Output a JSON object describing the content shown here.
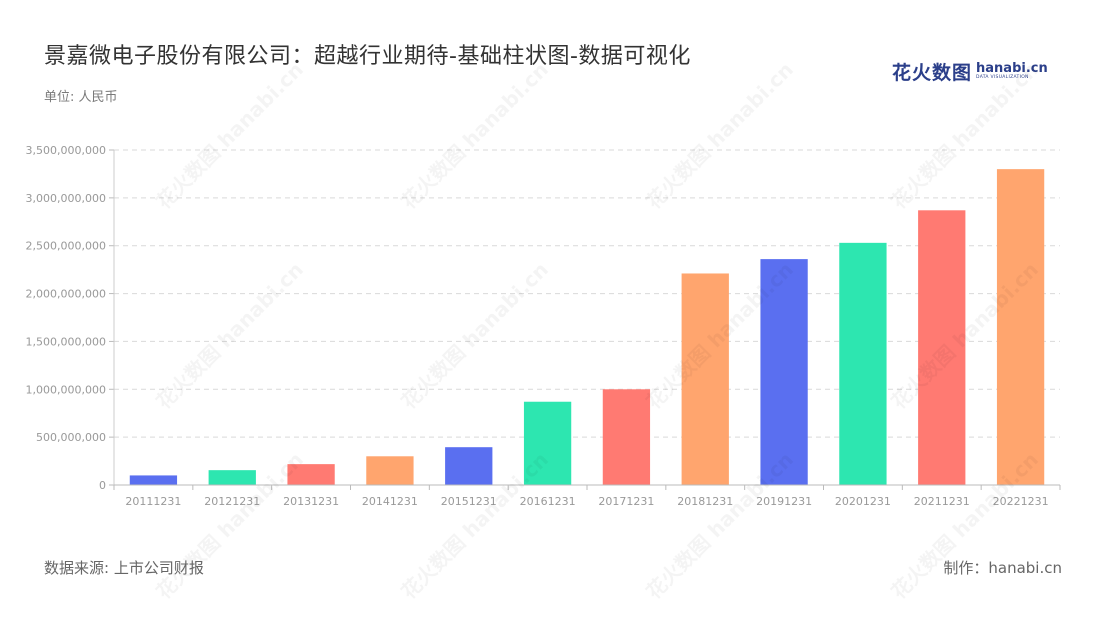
{
  "header": {
    "title": "景嘉微电子股份有限公司：超越行业期待-基础柱状图-数据可视化",
    "unit": "单位: 人民币"
  },
  "logo": {
    "cn": "花火数图",
    "en": "hanabi.cn",
    "en_sub": "DATA VISUALIZATION"
  },
  "footer": {
    "source": "数据来源: 上市公司财报",
    "maker": "制作：hanabi.cn"
  },
  "watermark": {
    "text": "花火数图 hanabi.cn"
  },
  "chart_data": {
    "type": "bar",
    "categories": [
      "20111231",
      "20121231",
      "20131231",
      "20141231",
      "20151231",
      "20161231",
      "20171231",
      "20181231",
      "20191231",
      "20201231",
      "20211231",
      "20221231"
    ],
    "values": [
      100000000,
      155000000,
      218000000,
      300000000,
      395000000,
      870000000,
      1000000000,
      2210000000,
      2360000000,
      2530000000,
      2870000000,
      3300000000
    ],
    "colors": [
      "#5a6ff0",
      "#2de6b0",
      "#ff7a72",
      "#ffa56e",
      "#5a6ff0",
      "#2de6b0",
      "#ff7a72",
      "#ffa56e",
      "#5a6ff0",
      "#2de6b0",
      "#ff7a72",
      "#ffa56e"
    ],
    "ylim": [
      0,
      3500000000
    ],
    "yticks": [
      0,
      500000000,
      1000000000,
      1500000000,
      2000000000,
      2500000000,
      3000000000,
      3500000000
    ],
    "ytick_labels": [
      "0",
      "500,000,000",
      "1,000,000,000",
      "1,500,000,000",
      "2,000,000,000",
      "2,500,000,000",
      "3,000,000,000",
      "3,500,000,000"
    ],
    "grid": true,
    "title": "",
    "xlabel": "",
    "ylabel": ""
  }
}
